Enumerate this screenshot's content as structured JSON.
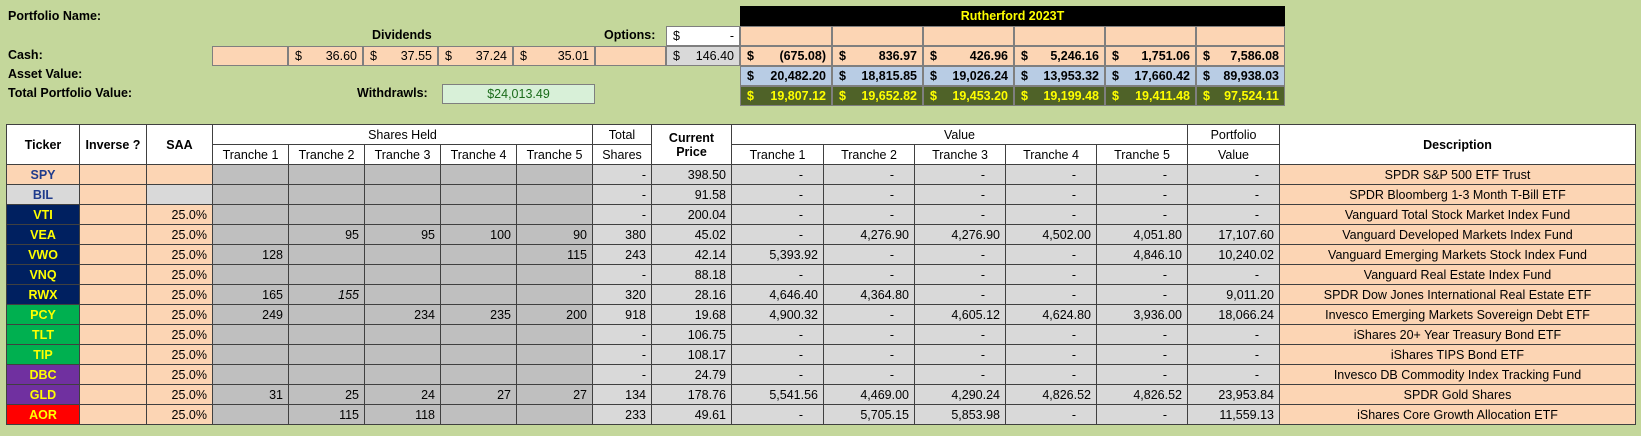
{
  "header": {
    "portfolio_name_label": "Portfolio Name:",
    "cash_label": "Cash:",
    "asset_value_label": "Asset Value:",
    "total_value_label": "Total Portfolio Value:",
    "dividends_label": "Dividends",
    "options_label": "Options:",
    "options_sym": "$",
    "options_value": "-",
    "withdrawls_label": "Withdrawls:",
    "withdrawls_value": "$24,013.49",
    "dividends": [
      "36.60",
      "37.55",
      "37.24",
      "35.01"
    ],
    "cash_total": "146.40",
    "tranche_title": "Rutherford 2023T",
    "cash_row": [
      "(675.08)",
      "836.97",
      "426.96",
      "5,246.16",
      "1,751.06",
      "7,586.08"
    ],
    "asset_row": [
      "20,482.20",
      "18,815.85",
      "19,026.24",
      "13,953.32",
      "17,660.42",
      "89,938.03"
    ],
    "total_row": [
      "19,807.12",
      "19,652.82",
      "19,453.20",
      "19,199.48",
      "19,411.48",
      "97,524.11"
    ],
    "currency": "$"
  },
  "table": {
    "h_ticker": "Ticker",
    "h_inverse": "Inverse ?",
    "h_saa": "SAA",
    "h_shares_held": "Shares Held",
    "h_total": "Total",
    "h_shares": "Shares",
    "h_current": "Current",
    "h_price": "Price",
    "h_value": "Value",
    "h_portfolio": "Portfolio",
    "h_pvalue": "Value",
    "h_description": "Description",
    "tranches": [
      "Tranche 1",
      "Tranche 2",
      "Tranche 3",
      "Tranche 4",
      "Tranche 5"
    ],
    "rows": [
      {
        "ticker": "SPY",
        "saa": "",
        "shares": [
          "",
          "",
          "",
          "",
          ""
        ],
        "total": "-",
        "price": "398.50",
        "values": [
          "-",
          "-",
          "-",
          "-",
          "-"
        ],
        "pvalue": "-",
        "desc": "SPDR S&P 500 ETF Trust"
      },
      {
        "ticker": "BIL",
        "saa": "",
        "shares": [
          "",
          "",
          "",
          "",
          ""
        ],
        "total": "-",
        "price": "91.58",
        "values": [
          "-",
          "-",
          "-",
          "-",
          "-"
        ],
        "pvalue": "-",
        "desc": "SPDR Bloomberg 1-3 Month T-Bill ETF"
      },
      {
        "ticker": "VTI",
        "saa": "25.0%",
        "shares": [
          "",
          "",
          "",
          "",
          ""
        ],
        "total": "-",
        "price": "200.04",
        "values": [
          "-",
          "-",
          "-",
          "-",
          "-"
        ],
        "pvalue": "-",
        "desc": "Vanguard Total Stock Market Index Fund"
      },
      {
        "ticker": "VEA",
        "saa": "25.0%",
        "shares": [
          "",
          "95",
          "95",
          "100",
          "90"
        ],
        "total": "380",
        "price": "45.02",
        "values": [
          "-",
          "4,276.90",
          "4,276.90",
          "4,502.00",
          "4,051.80"
        ],
        "pvalue": "17,107.60",
        "desc": "Vanguard Developed Markets Index Fund"
      },
      {
        "ticker": "VWO",
        "saa": "25.0%",
        "shares": [
          "128",
          "",
          "",
          "",
          "115"
        ],
        "total": "243",
        "price": "42.14",
        "values": [
          "5,393.92",
          "-",
          "-",
          "-",
          "4,846.10"
        ],
        "pvalue": "10,240.02",
        "desc": "Vanguard Emerging Markets Stock Index Fund"
      },
      {
        "ticker": "VNQ",
        "saa": "25.0%",
        "shares": [
          "",
          "",
          "",
          "",
          ""
        ],
        "total": "-",
        "price": "88.18",
        "values": [
          "-",
          "-",
          "-",
          "-",
          "-"
        ],
        "pvalue": "-",
        "desc": "Vanguard Real Estate Index Fund"
      },
      {
        "ticker": "RWX",
        "saa": "25.0%",
        "shares": [
          "165",
          "155",
          "",
          "",
          ""
        ],
        "total": "320",
        "price": "28.16",
        "values": [
          "4,646.40",
          "4,364.80",
          "-",
          "-",
          "-"
        ],
        "pvalue": "9,011.20",
        "desc": "SPDR Dow Jones International Real Estate ETF"
      },
      {
        "ticker": "PCY",
        "saa": "25.0%",
        "shares": [
          "249",
          "",
          "234",
          "235",
          "200"
        ],
        "total": "918",
        "price": "19.68",
        "values": [
          "4,900.32",
          "-",
          "4,605.12",
          "4,624.80",
          "3,936.00"
        ],
        "pvalue": "18,066.24",
        "desc": "Invesco Emerging Markets Sovereign Debt ETF"
      },
      {
        "ticker": "TLT",
        "saa": "25.0%",
        "shares": [
          "",
          "",
          "",
          "",
          ""
        ],
        "total": "-",
        "price": "106.75",
        "values": [
          "-",
          "-",
          "-",
          "-",
          "-"
        ],
        "pvalue": "-",
        "desc": "iShares 20+ Year Treasury Bond ETF"
      },
      {
        "ticker": "TIP",
        "saa": "25.0%",
        "shares": [
          "",
          "",
          "",
          "",
          ""
        ],
        "total": "-",
        "price": "108.17",
        "values": [
          "-",
          "-",
          "-",
          "-",
          "-"
        ],
        "pvalue": "-",
        "desc": "iShares TIPS Bond ETF"
      },
      {
        "ticker": "DBC",
        "saa": "25.0%",
        "shares": [
          "",
          "",
          "",
          "",
          ""
        ],
        "total": "-",
        "price": "24.79",
        "values": [
          "-",
          "-",
          "-",
          "-",
          "-"
        ],
        "pvalue": "-",
        "desc": "Invesco DB Commodity Index Tracking Fund"
      },
      {
        "ticker": "GLD",
        "saa": "25.0%",
        "shares": [
          "31",
          "25",
          "24",
          "27",
          "27"
        ],
        "total": "134",
        "price": "178.76",
        "values": [
          "5,541.56",
          "4,469.00",
          "4,290.24",
          "4,826.52",
          "4,826.52"
        ],
        "pvalue": "23,953.84",
        "desc": "SPDR Gold Shares"
      },
      {
        "ticker": "AOR",
        "saa": "25.0%",
        "shares": [
          "",
          "115",
          "118",
          "",
          ""
        ],
        "total": "233",
        "price": "49.61",
        "values": [
          "-",
          "5,705.15",
          "5,853.98",
          "-",
          "-"
        ],
        "pvalue": "11,559.13",
        "desc": "iShares Core Growth Allocation ETF"
      }
    ]
  },
  "colors": {
    "sheet_bg": "#c4d79b",
    "peach": "#fcd5b4",
    "blue": "#b8cce4",
    "olive": "#4f6228",
    "yellow_text": "#ffff00",
    "ticker_colors": {
      "SPY": {
        "bg": "#fcd5b4",
        "fg": "#1f3b8c"
      },
      "BIL": {
        "bg": "#d9d9d9",
        "fg": "#1f3b8c"
      },
      "VTI": {
        "bg": "#002060",
        "fg": "#ffff00"
      },
      "VEA": {
        "bg": "#002060",
        "fg": "#ffff00"
      },
      "VWO": {
        "bg": "#002060",
        "fg": "#ffff00"
      },
      "VNQ": {
        "bg": "#002060",
        "fg": "#ffff00"
      },
      "RWX": {
        "bg": "#002060",
        "fg": "#ffff00"
      },
      "PCY": {
        "bg": "#00b050",
        "fg": "#ffff00"
      },
      "TLT": {
        "bg": "#00b050",
        "fg": "#ffff00"
      },
      "TIP": {
        "bg": "#00b050",
        "fg": "#ffff00"
      },
      "DBC": {
        "bg": "#7030a0",
        "fg": "#ffff00"
      },
      "GLD": {
        "bg": "#7030a0",
        "fg": "#ffff00"
      },
      "AOR": {
        "bg": "#ff0000",
        "fg": "#ffff00"
      }
    }
  }
}
